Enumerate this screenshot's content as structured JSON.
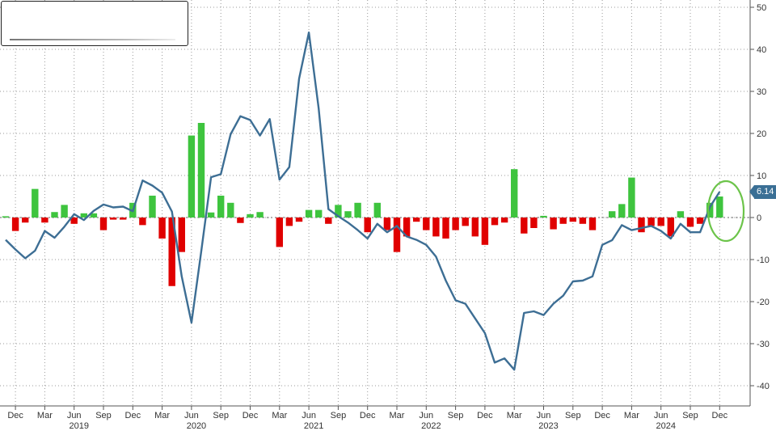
{
  "chart_data": {
    "type": "bar+line",
    "title": "",
    "xlabel": "",
    "ylabel": "",
    "ylim": [
      -42,
      52
    ],
    "y_axis_side": "right",
    "y_ticks": [
      -40,
      -30,
      -20,
      -10,
      0,
      10,
      20,
      30,
      40,
      50
    ],
    "grid": true,
    "colors": {
      "positive_bar": "#3ec43e",
      "negative_bar": "#e00000",
      "line": "#3d6e94",
      "highlight_circle": "#6cc44a",
      "last_value_tag": "#3a6f95"
    },
    "x_start": "2018-11",
    "month_ticks": [
      {
        "label": "Dec",
        "index": 1
      },
      {
        "label": "Mar",
        "index": 4
      },
      {
        "label": "Jun",
        "index": 7
      },
      {
        "label": "Sep",
        "index": 10
      },
      {
        "label": "Dec",
        "index": 13
      },
      {
        "label": "Mar",
        "index": 16
      },
      {
        "label": "Jun",
        "index": 19
      },
      {
        "label": "Sep",
        "index": 22
      },
      {
        "label": "Dec",
        "index": 25
      },
      {
        "label": "Mar",
        "index": 28
      },
      {
        "label": "Jun",
        "index": 31
      },
      {
        "label": "Sep",
        "index": 34
      },
      {
        "label": "Dec",
        "index": 37
      },
      {
        "label": "Mar",
        "index": 40
      },
      {
        "label": "Jun",
        "index": 43
      },
      {
        "label": "Sep",
        "index": 46
      },
      {
        "label": "Dec",
        "index": 49
      },
      {
        "label": "Mar",
        "index": 52
      },
      {
        "label": "Jun",
        "index": 55
      },
      {
        "label": "Sep",
        "index": 58
      },
      {
        "label": "Dec",
        "index": 61
      },
      {
        "label": "Mar",
        "index": 64
      },
      {
        "label": "Jun",
        "index": 67
      },
      {
        "label": "Sep",
        "index": 70
      },
      {
        "label": "Dec",
        "index": 73
      }
    ],
    "year_labels": [
      {
        "label": "2019",
        "index": 7.5
      },
      {
        "label": "2020",
        "index": 19.5
      },
      {
        "label": "2021",
        "index": 31.5
      },
      {
        "label": "2022",
        "index": 43.5
      },
      {
        "label": "2023",
        "index": 55.5
      },
      {
        "label": "2024",
        "index": 67.5
      }
    ],
    "series": [
      {
        "type": "bar",
        "values": [
          0.3,
          -3.2,
          -1.2,
          6.8,
          -1.2,
          1.3,
          3.0,
          -1.5,
          1.0,
          1.0,
          -3.0,
          -0.5,
          -0.5,
          3.5,
          -1.8,
          5.2,
          -5.0,
          -16.3,
          -8.2,
          19.5,
          22.5,
          1.2,
          5.2,
          3.5,
          -1.3,
          0.8,
          1.3,
          0,
          -7.0,
          -2.0,
          -1.0,
          1.8,
          1.8,
          -1.5,
          3.0,
          1.5,
          3.5,
          -3.5,
          3.5,
          -3.0,
          -8.2,
          -4.5,
          -1.0,
          -3.0,
          -4.5,
          -5.0,
          -3.0,
          -2.0,
          -4.5,
          -6.5,
          -1.8,
          -1.2,
          11.5,
          -3.8,
          -2.5,
          0.4,
          -2.8,
          -1.5,
          -1.0,
          -1.5,
          -3.0,
          0,
          1.5,
          3.2,
          9.5,
          -3.5,
          -2.0,
          -2.0,
          -4.5,
          1.5,
          -2.2,
          -1.5,
          3.5,
          5.0
        ]
      },
      {
        "type": "line",
        "values": [
          -5.3,
          -7.6,
          -9.7,
          -7.9,
          -3.2,
          -4.8,
          -2.2,
          0.8,
          -0.6,
          1.6,
          3.1,
          2.4,
          2.6,
          1.5,
          8.8,
          7.6,
          5.9,
          1.4,
          -14.0,
          -25.0,
          -8.0,
          9.6,
          10.3,
          19.8,
          24.1,
          23.2,
          19.5,
          23.4,
          9.0,
          12.0,
          33.0,
          44.0,
          26.0,
          2.0,
          0.3,
          -1.2,
          -3.0,
          -5.0,
          -1.5,
          -3.5,
          -2.0,
          -4.5,
          -5.3,
          -6.5,
          -9.3,
          -15.0,
          -19.7,
          -20.5,
          -24.0,
          -27.5,
          -34.5,
          -33.5,
          -36.2,
          -22.7,
          -22.3,
          -23.2,
          -20.5,
          -18.6,
          -15.2,
          -15.0,
          -14.0,
          -6.5,
          -5.4,
          -1.8,
          -3.0,
          -2.5,
          -2.0,
          -3.2,
          -5.0,
          -1.5,
          -3.5,
          -3.5,
          2.5,
          6.14
        ]
      }
    ],
    "last_value_label": "6.14"
  }
}
